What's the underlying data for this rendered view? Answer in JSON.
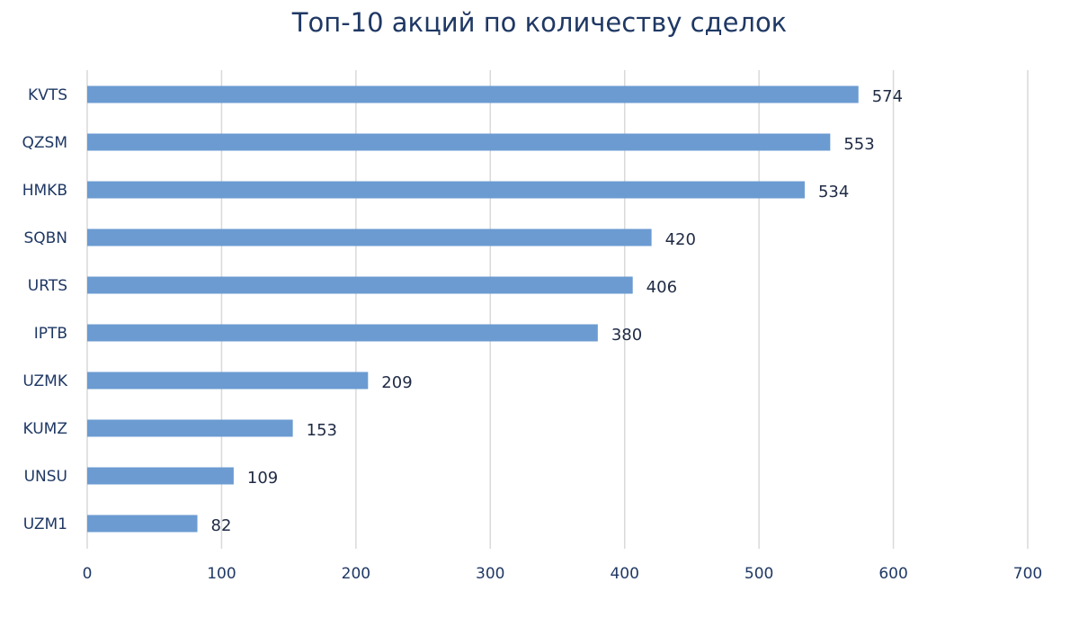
{
  "chart_data": {
    "type": "bar",
    "orientation": "horizontal",
    "title": "Топ-10 акций по количеству сделок",
    "categories": [
      "KVTS",
      "QZSM",
      "HMKB",
      "SQBN",
      "URTS",
      "IPTB",
      "UZMK",
      "KUMZ",
      "UNSU",
      "UZM1"
    ],
    "values": [
      574,
      553,
      534,
      420,
      406,
      380,
      209,
      153,
      109,
      82
    ],
    "xlim": [
      0,
      700
    ],
    "xticks": [
      0,
      100,
      200,
      300,
      400,
      500,
      600,
      700
    ],
    "xlabel": "",
    "ylabel": "",
    "grid": "vertical",
    "legend": "none",
    "bar_color": "#6b9bd1"
  }
}
